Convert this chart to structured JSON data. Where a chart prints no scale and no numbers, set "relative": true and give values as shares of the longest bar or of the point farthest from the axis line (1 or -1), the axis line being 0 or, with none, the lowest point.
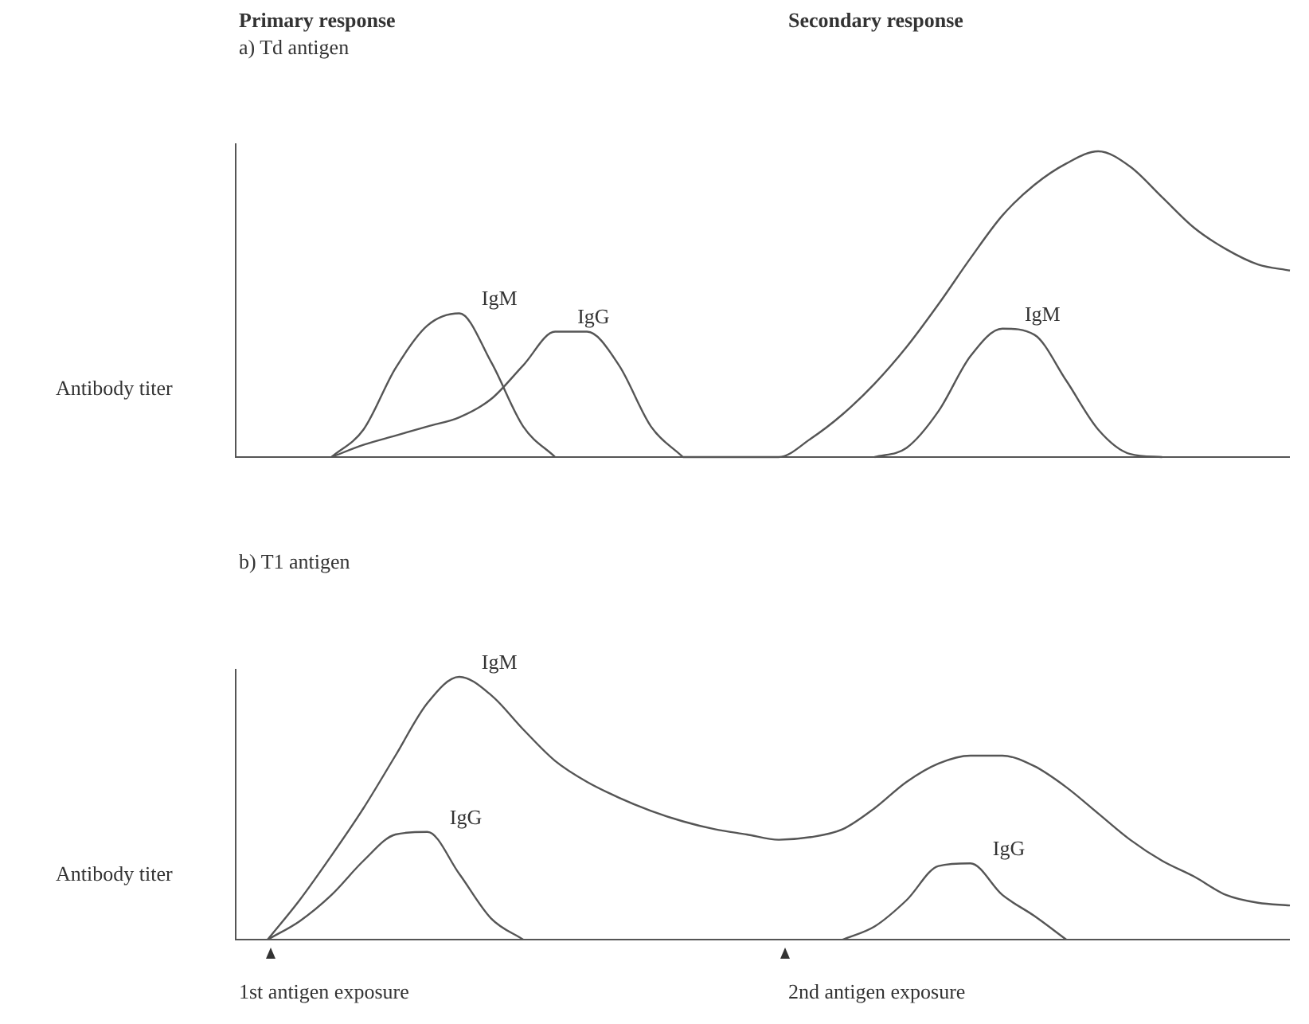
{
  "chart_data": [
    {
      "type": "line",
      "title": "a) Td antigen",
      "ylabel": "Antibody titer",
      "relative": true,
      "annotations": [
        "Primary response",
        "Secondary response"
      ],
      "categories": [
        null,
        null,
        null,
        null,
        null,
        null,
        null,
        null,
        null,
        null,
        null,
        null,
        null,
        null,
        null,
        null,
        null,
        null,
        null,
        null,
        null,
        null,
        null,
        null,
        null,
        null,
        null,
        null,
        null,
        null,
        null,
        null,
        null,
        null
      ],
      "series": [
        {
          "name": "IgM",
          "color": "#555555",
          "values": [
            null,
            null,
            null,
            0,
            0.09,
            0.29,
            0.43,
            0.47,
            0.31,
            0.1,
            0,
            null,
            null,
            null,
            null,
            null,
            null,
            null,
            null,
            null,
            null,
            null,
            null,
            null,
            null,
            null,
            null,
            null,
            null,
            null,
            null,
            null,
            null,
            null
          ]
        },
        {
          "name": "IgG",
          "color": "#555555",
          "values": [
            null,
            null,
            null,
            0,
            0.04,
            0.07,
            0.1,
            0.13,
            0.19,
            0.3,
            0.41,
            0.41,
            0.3,
            0.1,
            0,
            null,
            null,
            null,
            null,
            null,
            null,
            null,
            null,
            null,
            null,
            null,
            null,
            null,
            null,
            null,
            null,
            null,
            null,
            null
          ]
        },
        {
          "color": "#555555",
          "values": [
            null,
            null,
            null,
            null,
            null,
            null,
            null,
            null,
            null,
            null,
            null,
            null,
            null,
            null,
            0,
            0,
            0,
            0,
            0.06,
            0.14,
            0.24,
            0.36,
            0.5,
            0.65,
            0.79,
            0.89,
            0.96,
            1,
            0.95,
            0.85,
            0.75,
            0.68,
            0.63,
            0.61
          ]
        },
        {
          "name": "IgM",
          "color": "#555555",
          "values": [
            null,
            null,
            null,
            null,
            null,
            null,
            null,
            null,
            null,
            null,
            null,
            null,
            null,
            null,
            null,
            null,
            null,
            null,
            null,
            null,
            0,
            0.03,
            0.15,
            0.33,
            0.42,
            0.4,
            0.25,
            0.09,
            0.01,
            0,
            null,
            null,
            null,
            null
          ]
        }
      ]
    },
    {
      "type": "line",
      "title": "b) T1 antigen",
      "ylabel": "Antibody titer",
      "relative": true,
      "annotations": [
        "1st antigen exposure",
        "2nd antigen exposure"
      ],
      "categories": [
        null,
        null,
        null,
        null,
        null,
        null,
        null,
        null,
        null,
        null,
        null,
        null,
        null,
        null,
        null,
        null,
        null,
        null,
        null,
        null,
        null,
        null,
        null,
        null,
        null,
        null,
        null,
        null,
        null,
        null,
        null,
        null,
        null,
        null
      ],
      "series": [
        {
          "name": "IgM",
          "color": "#555555",
          "values": [
            null,
            0,
            0.15,
            0.32,
            0.5,
            0.7,
            0.9,
            1,
            0.93,
            0.8,
            0.68,
            0.6,
            0.54,
            0.49,
            0.45,
            0.42,
            0.4,
            0.38,
            0.39,
            0.42,
            0.5,
            0.6,
            0.67,
            0.7,
            0.7,
            0.66,
            0.58,
            0.48,
            0.38,
            0.3,
            0.24,
            0.17,
            0.14,
            0.13
          ]
        },
        {
          "name": "IgG",
          "color": "#555555",
          "values": [
            null,
            0,
            0.07,
            0.17,
            0.3,
            0.4,
            0.41,
            0.25,
            0.08,
            0,
            null,
            null,
            null,
            null,
            null,
            null,
            null,
            null,
            null,
            null,
            null,
            null,
            null,
            null,
            null,
            null,
            null,
            null,
            null,
            null,
            null,
            null,
            null,
            null
          ]
        },
        {
          "name": "IgG",
          "color": "#555555",
          "values": [
            null,
            null,
            null,
            null,
            null,
            null,
            null,
            null,
            null,
            null,
            null,
            null,
            null,
            null,
            null,
            null,
            null,
            null,
            null,
            0,
            0.05,
            0.15,
            0.28,
            0.29,
            0.17,
            0.09,
            0,
            null,
            null,
            null,
            null,
            null,
            null,
            null
          ]
        }
      ]
    }
  ]
}
